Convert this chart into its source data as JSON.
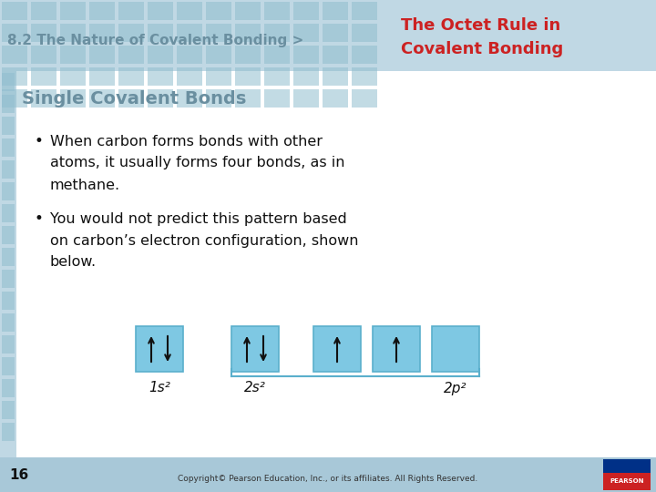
{
  "header_left": "8.2 The Nature of Covalent Bonding >",
  "header_right_line1": "The Octet Rule in",
  "header_right_line2": "Covalent Bonding",
  "section_title": "Single Covalent Bonds",
  "bullet1_line1": "When carbon forms bonds with other",
  "bullet1_line2": "atoms, it usually forms four bonds, as in",
  "bullet1_line3": "methane.",
  "bullet2_line1": "You would not predict this pattern based",
  "bullet2_line2": "on carbon’s electron configuration, shown",
  "bullet2_line3": "below.",
  "header_left_color": "#6a8fa0",
  "header_right_color": "#cc2222",
  "section_title_color": "#6a8fa0",
  "body_text_color": "#111111",
  "bg_color": "#ffffff",
  "header_bg_color": "#c0d8e4",
  "tile_color": "#90bece",
  "box_fill_color": "#7ec8e3",
  "box_border_color": "#5aafcc",
  "footer_bg_color": "#a8c8d8",
  "page_number": "16",
  "copyright_text": "Copyright© Pearson Education, Inc., or its affiliates. All Rights Reserved."
}
